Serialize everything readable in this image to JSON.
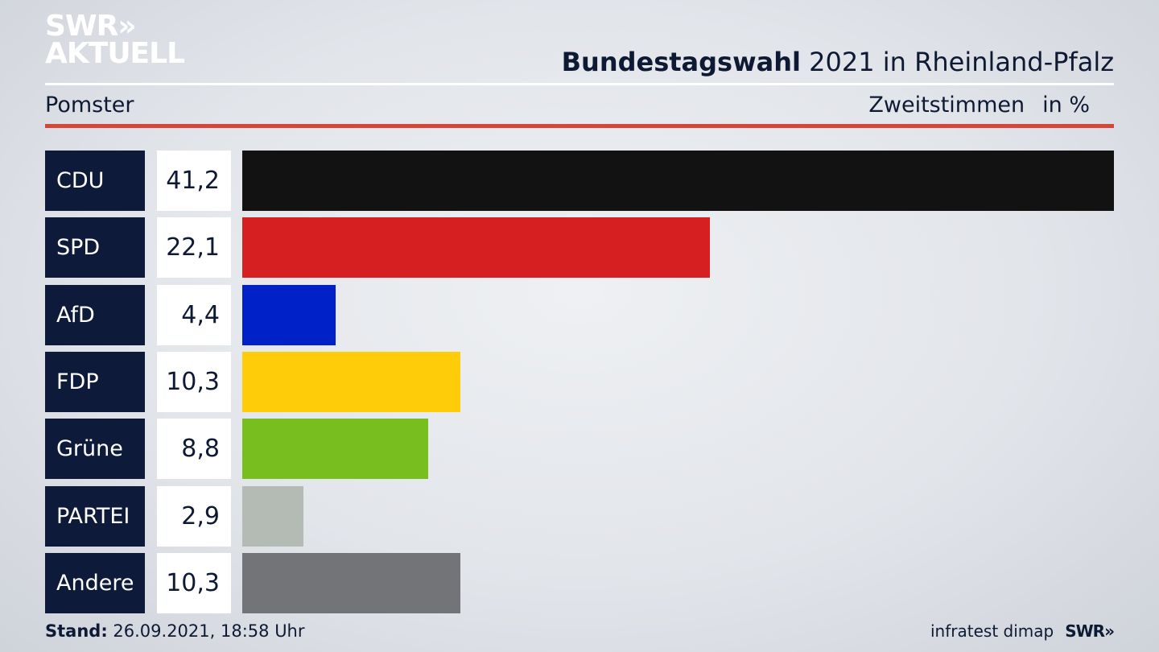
{
  "logo": {
    "line1": "SWR",
    "arrows": "»",
    "line2": "AKTUELL"
  },
  "header": {
    "title_bold": "Bundestagswahl",
    "title_rest": "2021 in Rheinland-Pfalz",
    "region": "Pomster",
    "metric": "Zweitstimmen",
    "unit": "in %"
  },
  "footer": {
    "stand_label": "Stand:",
    "stand_value": "26.09.2021, 18:58 Uhr",
    "source": "infratest dimap",
    "brand": "SWR",
    "brand_arrows": "»"
  },
  "chart_data": {
    "type": "bar",
    "orientation": "horizontal",
    "categories": [
      "CDU",
      "SPD",
      "AfD",
      "FDP",
      "Grüne",
      "PARTEI",
      "Andere"
    ],
    "values": [
      41.2,
      22.1,
      4.4,
      10.3,
      8.8,
      2.9,
      10.3
    ],
    "value_labels": [
      "41,2",
      "22,1",
      "4,4",
      "10,3",
      "8,8",
      "2,9",
      "10,3"
    ],
    "colors": [
      "#121212",
      "#d61f20",
      "#0021c7",
      "#ffcc0a",
      "#78be1e",
      "#b4bbb5",
      "#737477"
    ],
    "xlim": [
      0,
      41.2
    ],
    "grid": false
  }
}
